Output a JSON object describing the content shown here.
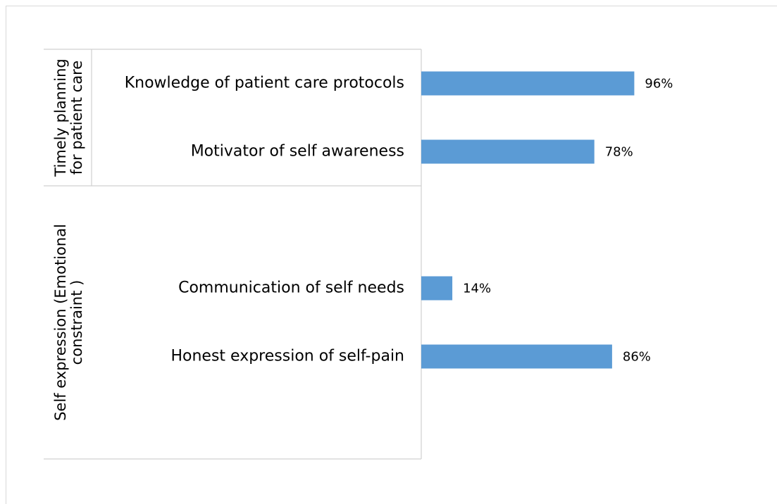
{
  "chart_data": {
    "type": "bar",
    "orientation": "horizontal",
    "color": "#5b9bd5",
    "xlim": [
      0,
      100
    ],
    "groups": [
      {
        "label": "Timely planning for patient care",
        "categories": [
          "Knowledge of patient care protocols",
          "Motivator of self awareness"
        ],
        "values": [
          96,
          78
        ],
        "value_labels": [
          "96%",
          "78%"
        ]
      },
      {
        "label": "Self expression (Emotional constraint )",
        "categories": [
          null,
          "Communication of self needs",
          "Honest expression of self-pain",
          null
        ],
        "values": [
          null,
          14,
          86,
          null
        ],
        "value_labels": [
          null,
          "14%",
          "86%",
          null
        ]
      }
    ]
  }
}
